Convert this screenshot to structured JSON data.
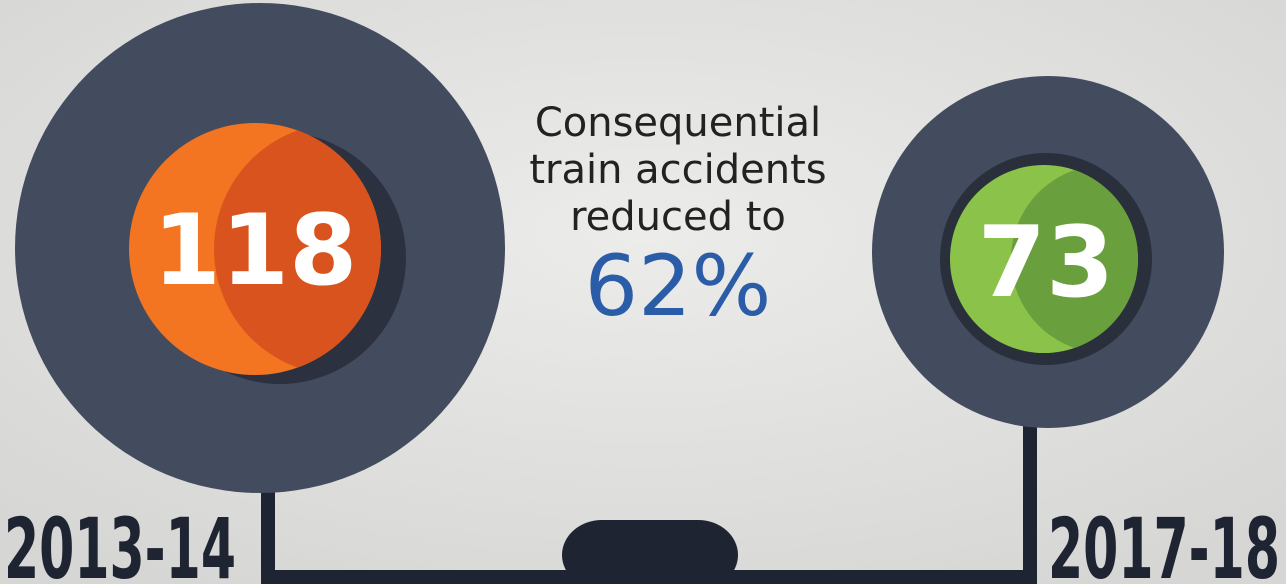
{
  "headline": {
    "lines": [
      "Consequential",
      "train accidents",
      "reduced to"
    ],
    "percent": "62%"
  },
  "left": {
    "value": "118",
    "year": "2013-14"
  },
  "right": {
    "value": "73",
    "year": "2017-18"
  }
}
